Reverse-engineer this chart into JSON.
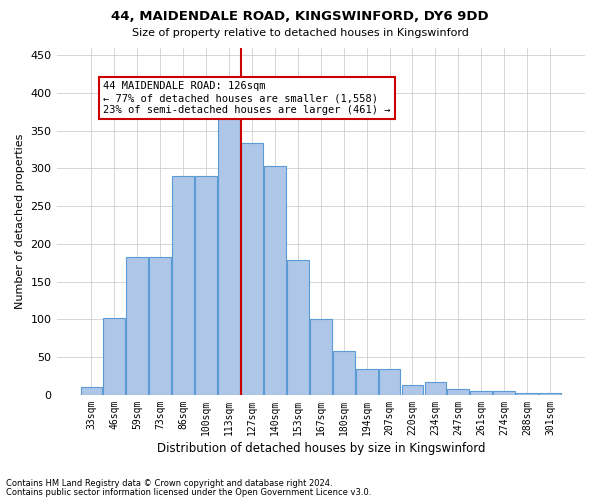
{
  "title": "44, MAIDENDALE ROAD, KINGSWINFORD, DY6 9DD",
  "subtitle": "Size of property relative to detached houses in Kingswinford",
  "xlabel": "Distribution of detached houses by size in Kingswinford",
  "ylabel": "Number of detached properties",
  "footnote1": "Contains HM Land Registry data © Crown copyright and database right 2024.",
  "footnote2": "Contains public sector information licensed under the Open Government Licence v3.0.",
  "bar_labels": [
    "33sqm",
    "46sqm",
    "59sqm",
    "73sqm",
    "86sqm",
    "100sqm",
    "113sqm",
    "127sqm",
    "140sqm",
    "153sqm",
    "167sqm",
    "180sqm",
    "194sqm",
    "207sqm",
    "220sqm",
    "234sqm",
    "247sqm",
    "261sqm",
    "274sqm",
    "288sqm",
    "301sqm"
  ],
  "bar_values": [
    10,
    102,
    182,
    182,
    290,
    290,
    366,
    333,
    303,
    178,
    100,
    58,
    34,
    34,
    13,
    17,
    8,
    5,
    5,
    3,
    3
  ],
  "bar_color": "#aec6e8",
  "bar_edge_color": "#5b9bd5",
  "vline_color": "#cc0000",
  "vline_pos": 6.5,
  "annotation_text": "44 MAIDENDALE ROAD: 126sqm\n← 77% of detached houses are smaller (1,558)\n23% of semi-detached houses are larger (461) →",
  "annotation_box_color": "#ffffff",
  "annotation_box_edge": "#cc0000",
  "ylim": [
    0,
    460
  ],
  "yticks": [
    0,
    50,
    100,
    150,
    200,
    250,
    300,
    350,
    400,
    450
  ],
  "background_color": "#ffffff",
  "grid_color": "#d0d0d0"
}
